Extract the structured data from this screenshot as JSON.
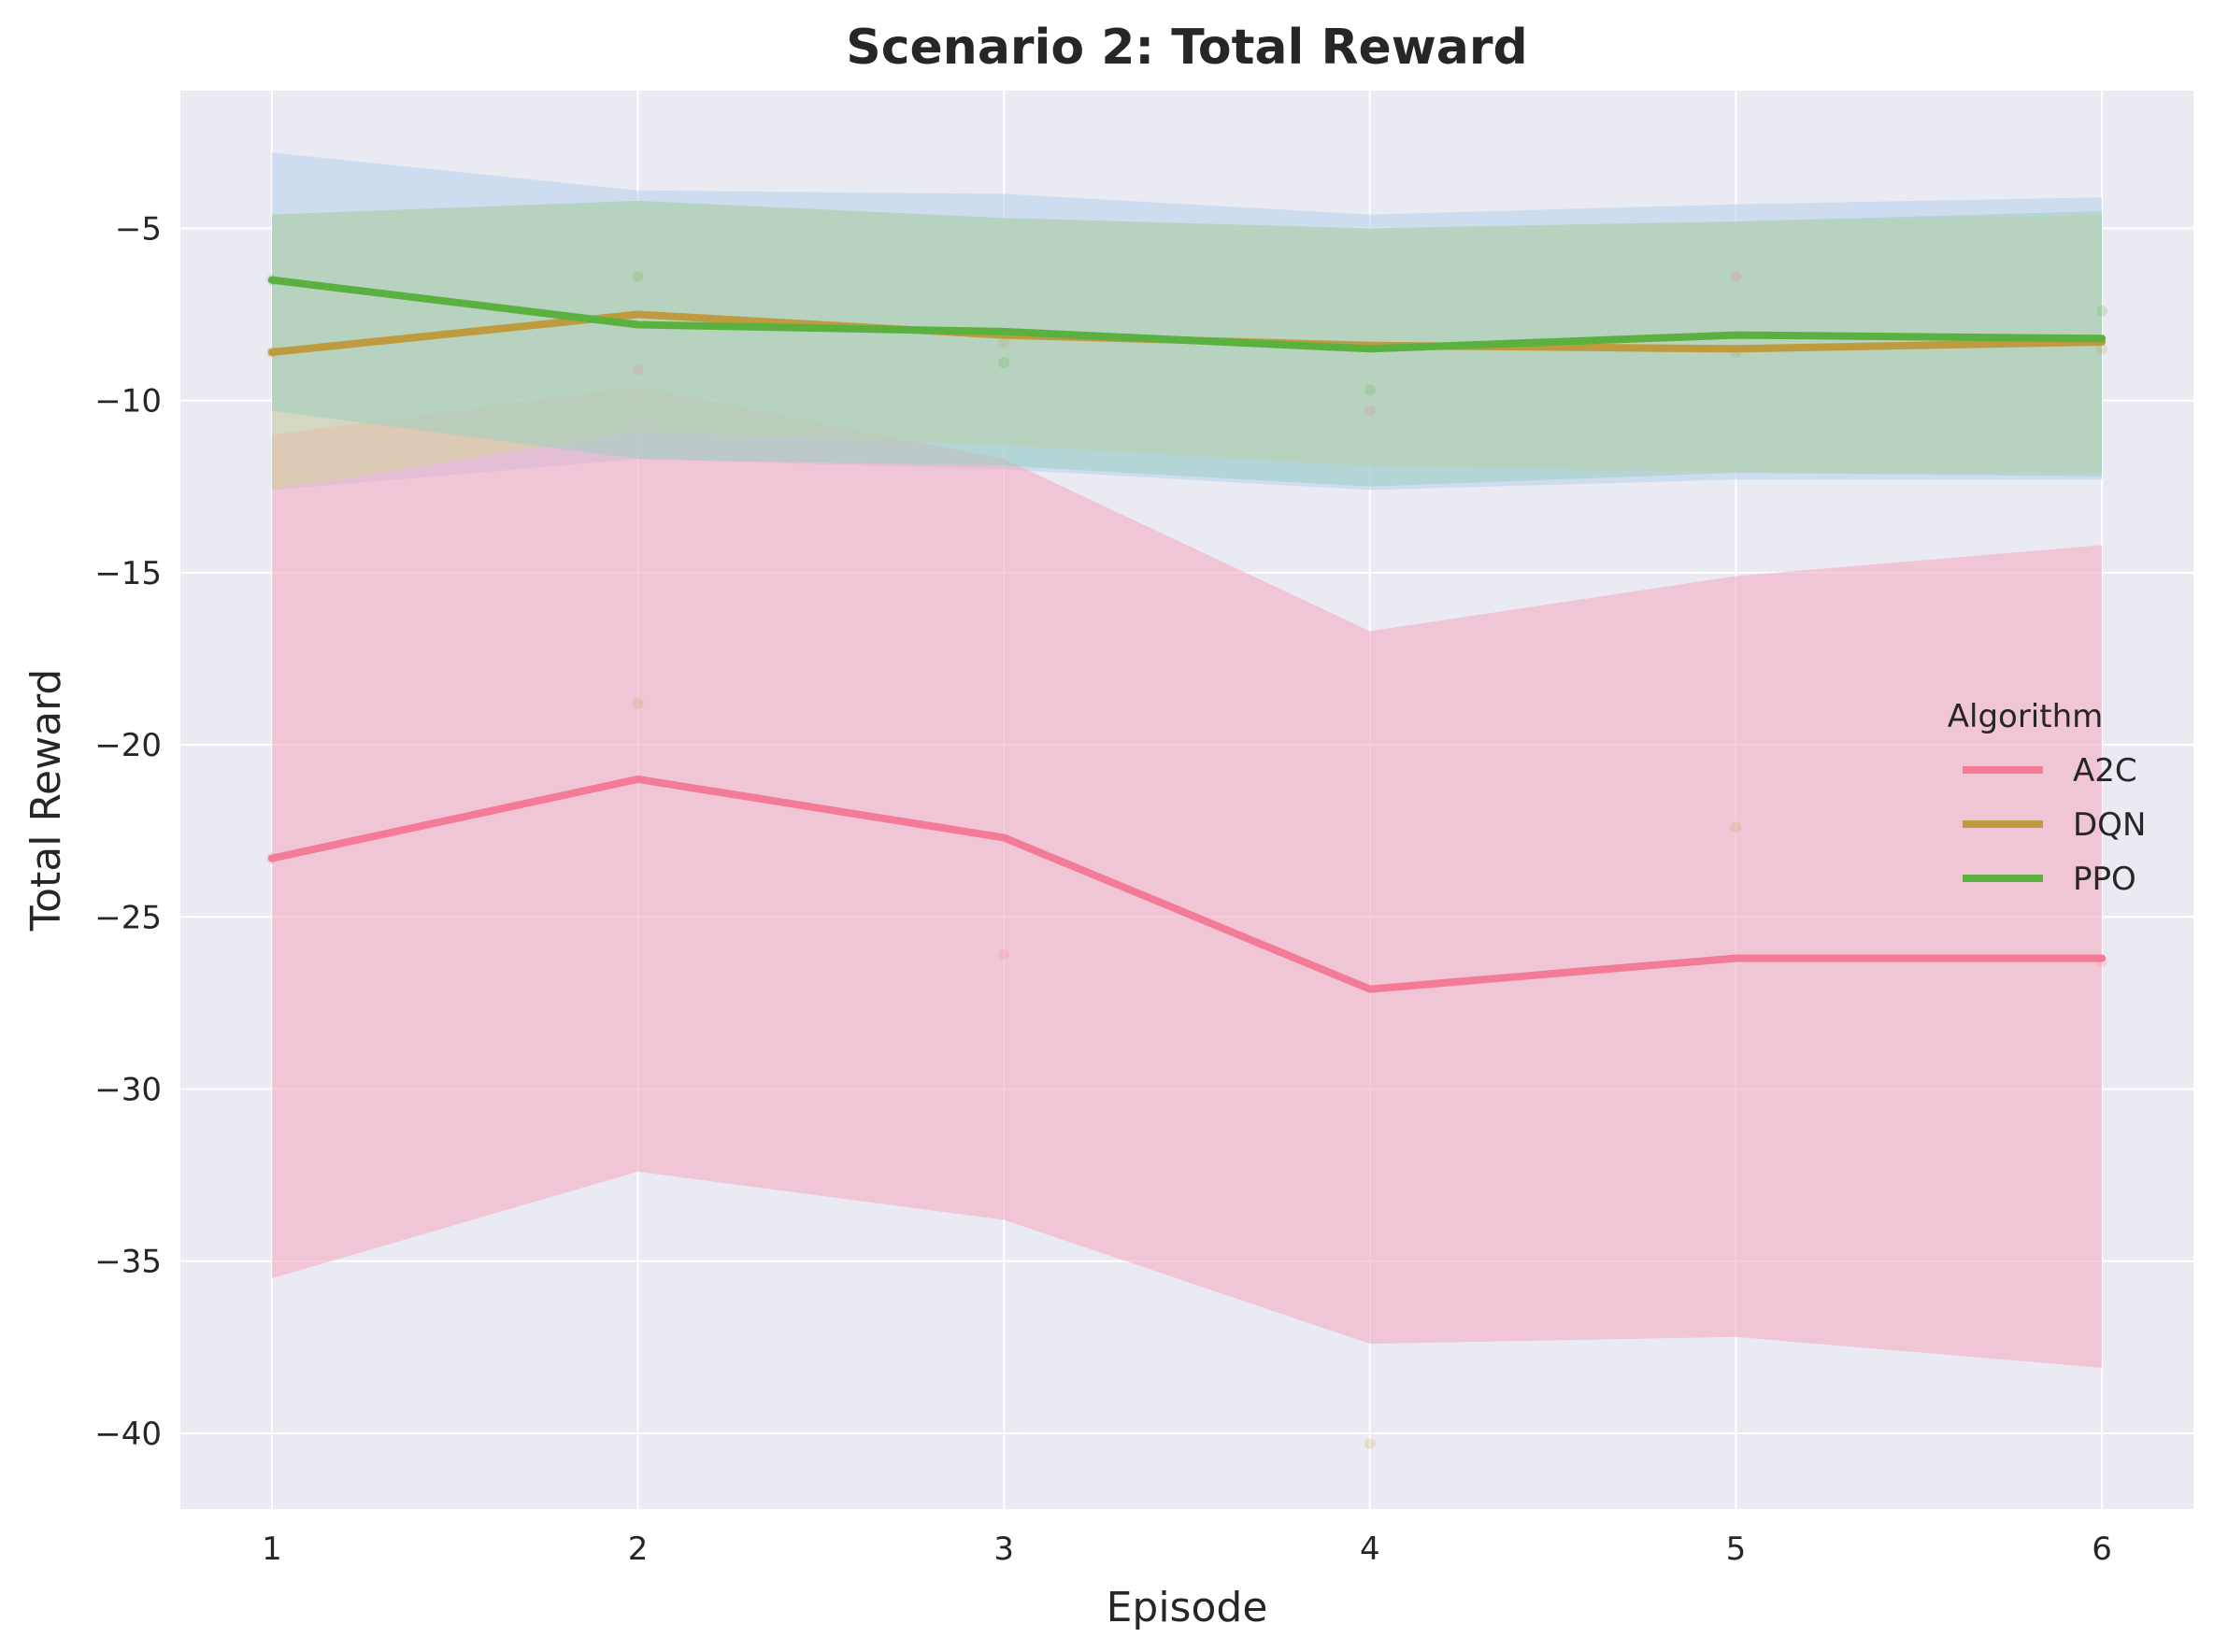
{
  "chart_data": {
    "type": "line",
    "title": "Scenario 2: Total Reward",
    "xlabel": "Episode",
    "ylabel": "Total Reward",
    "x": [
      1,
      2,
      3,
      4,
      5,
      6
    ],
    "xlim": [
      0.75,
      6.25
    ],
    "ylim": [
      -42.2,
      -1.0
    ],
    "xticks": [
      1,
      2,
      3,
      4,
      5,
      6
    ],
    "yticks": [
      -5,
      -10,
      -15,
      -20,
      -25,
      -30,
      -35,
      -40
    ],
    "ytick_labels": [
      "−5",
      "−10",
      "−15",
      "−20",
      "−25",
      "−30",
      "−35",
      "−40"
    ],
    "grid": true,
    "legend": {
      "title": "Algorithm",
      "placement": "center-right"
    },
    "series": [
      {
        "name": "A2C",
        "color": "#f37b96",
        "band_color": "#f4a6bd",
        "values": [
          -23.3,
          -21.0,
          -22.7,
          -27.1,
          -26.2,
          -26.2
        ],
        "band_upper": [
          -11.0,
          -9.6,
          -11.7,
          -16.7,
          -15.1,
          -14.2
        ],
        "band_lower": [
          -35.5,
          -32.4,
          -33.8,
          -37.4,
          -37.2,
          -38.1
        ],
        "scatter_x": [
          1,
          2,
          3,
          4,
          5,
          6
        ],
        "scatter_y": [
          -23.3,
          -9.1,
          -26.1,
          -10.3,
          -6.4,
          -26.3
        ]
      },
      {
        "name": "DQN",
        "color": "#bf9a3f",
        "band_color": "#d8d49a",
        "values": [
          -8.6,
          -7.5,
          -8.1,
          -8.4,
          -8.5,
          -8.3
        ],
        "band_upper": [
          -4.6,
          -4.2,
          -4.7,
          -5.0,
          -4.8,
          -4.6
        ],
        "band_lower": [
          -12.6,
          -10.9,
          -11.3,
          -11.9,
          -12.1,
          -12.1
        ],
        "scatter_x": [
          1,
          2,
          3,
          4,
          5,
          6
        ],
        "scatter_y": [
          -8.6,
          -18.8,
          -8.3,
          -40.3,
          -22.4,
          -8.5
        ]
      },
      {
        "name": "PPO",
        "color": "#5bb13f",
        "band_color": "#9fcfbf",
        "values": [
          -6.5,
          -7.8,
          -8.0,
          -8.5,
          -8.1,
          -8.2
        ],
        "band_upper": [
          -4.6,
          -4.2,
          -4.7,
          -5.0,
          -4.8,
          -4.5
        ],
        "band_lower": [
          -10.3,
          -11.7,
          -11.9,
          -12.5,
          -12.1,
          -12.2
        ],
        "scatter_x": [
          1,
          2,
          3,
          4,
          5,
          6
        ],
        "scatter_y": [
          -6.5,
          -6.4,
          -8.9,
          -9.7,
          -8.6,
          -7.4
        ]
      },
      {
        "color": "#6ca6e8",
        "band_color": "#b6d0ef",
        "band_upper": [
          -2.8,
          -3.9,
          -4.0,
          -4.6,
          -4.3,
          -4.1
        ],
        "band_lower": [
          -12.6,
          -11.7,
          -12.0,
          -12.6,
          -12.3,
          -12.3
        ]
      }
    ]
  }
}
